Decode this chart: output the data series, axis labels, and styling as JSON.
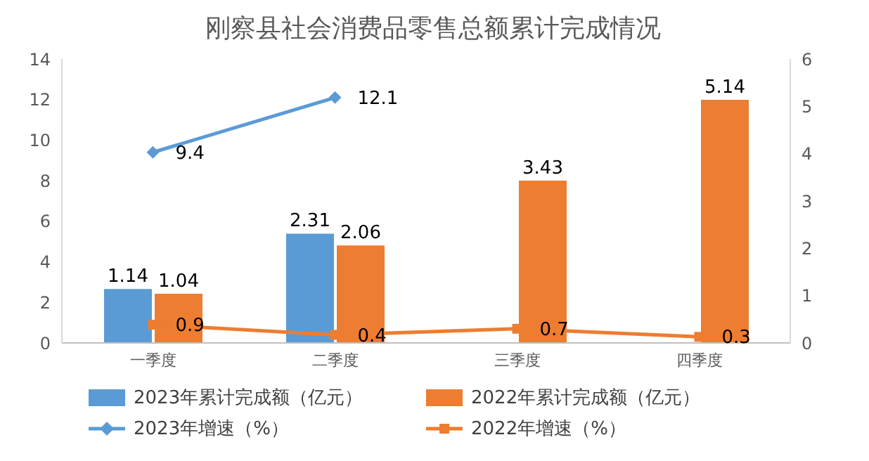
{
  "chart_data": {
    "type": "bar",
    "title": "刚察县社会消费品零售总额累计完成情况",
    "categories": [
      "一季度",
      "二季度",
      "三季度",
      "四季度"
    ],
    "series": [
      {
        "name": "2023年累计完成额（亿元）",
        "axis": "y2",
        "color": "#5b9bd5",
        "values": [
          1.14,
          2.31,
          null,
          null
        ]
      },
      {
        "name": "2022年累计完成额（亿元）",
        "axis": "y2",
        "color": "#ed7d31",
        "values": [
          1.04,
          2.06,
          3.43,
          5.14
        ]
      },
      {
        "name": "2023年增速（%）",
        "type": "line",
        "color": "#5b9bd5",
        "marker": "diamond",
        "values": [
          9.4,
          12.1,
          null,
          null
        ]
      },
      {
        "name": "2022年增速（%）",
        "type": "line",
        "color": "#ed7d31",
        "marker": "square",
        "values": [
          0.9,
          0.4,
          0.7,
          0.3
        ]
      }
    ],
    "ylim": [
      0,
      14
    ],
    "yticks": [
      0,
      2,
      4,
      6,
      8,
      10,
      12,
      14
    ],
    "y2lim": [
      0,
      6
    ],
    "y2ticks": [
      0,
      1,
      2,
      3,
      4,
      5,
      6
    ],
    "grid": false,
    "legend": "bottom",
    "data_labels": true
  }
}
